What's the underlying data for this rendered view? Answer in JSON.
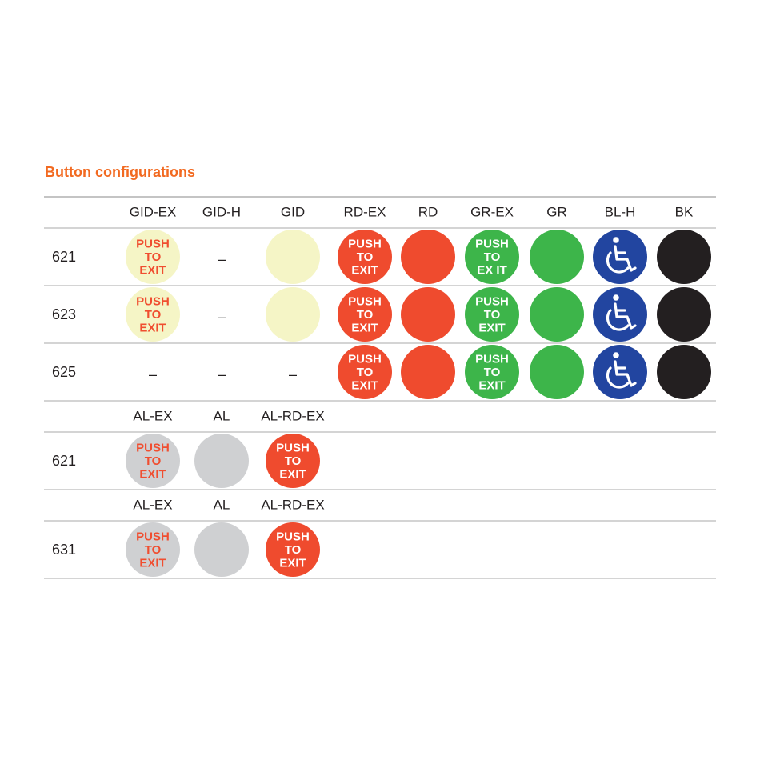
{
  "title": "Button configurations",
  "sections": [
    {
      "headers": [
        "GID-EX",
        "GID-H",
        "GID",
        "RD-EX",
        "RD",
        "GR-EX",
        "GR",
        "BL-H",
        "BK"
      ],
      "rows": [
        {
          "label": "621",
          "cells": [
            {
              "fill": "#f5f5c6",
              "ink": "#f04e30",
              "lines": [
                "PUSH",
                "TO",
                "EXIT"
              ]
            },
            {
              "dash": "–"
            },
            {
              "fill": "#f5f5c6"
            },
            {
              "fill": "#ef4b2e",
              "ink": "#ffffff",
              "lines": [
                "PUSH",
                "TO",
                "EXIT"
              ]
            },
            {
              "fill": "#ef4b2e"
            },
            {
              "fill": "#3db54a",
              "ink": "#ffffff",
              "lines": [
                "PUSH",
                "TO",
                "EX IT"
              ]
            },
            {
              "fill": "#3db54a"
            },
            {
              "fill": "#2245a0",
              "icon": "wheelchair"
            },
            {
              "fill": "#231f20"
            }
          ]
        },
        {
          "label": "623",
          "cells": [
            {
              "fill": "#f5f5c6",
              "ink": "#f04e30",
              "lines": [
                "PUSH",
                "TO",
                "EXIT"
              ]
            },
            {
              "dash": "–"
            },
            {
              "fill": "#f5f5c6"
            },
            {
              "fill": "#ef4b2e",
              "ink": "#ffffff",
              "lines": [
                "PUSH",
                "TO",
                "EXIT"
              ]
            },
            {
              "fill": "#ef4b2e"
            },
            {
              "fill": "#3db54a",
              "ink": "#ffffff",
              "lines": [
                "PUSH",
                "TO",
                "EXIT"
              ]
            },
            {
              "fill": "#3db54a"
            },
            {
              "fill": "#2245a0",
              "icon": "wheelchair"
            },
            {
              "fill": "#231f20"
            }
          ]
        },
        {
          "label": "625",
          "cells": [
            {
              "dash": "–"
            },
            {
              "dash": "–"
            },
            {
              "dash": "–"
            },
            {
              "fill": "#ef4b2e",
              "ink": "#ffffff",
              "lines": [
                "PUSH",
                "TO",
                "EXIT"
              ]
            },
            {
              "fill": "#ef4b2e"
            },
            {
              "fill": "#3db54a",
              "ink": "#ffffff",
              "lines": [
                "PUSH",
                "TO",
                "EXIT"
              ]
            },
            {
              "fill": "#3db54a"
            },
            {
              "fill": "#2245a0",
              "icon": "wheelchair"
            },
            {
              "fill": "#231f20"
            }
          ]
        }
      ]
    },
    {
      "headers": [
        "AL-EX",
        "AL",
        "AL-RD-EX"
      ],
      "rows": [
        {
          "label": "621",
          "cells": [
            {
              "fill": "#cfd0d2",
              "ink": "#f04e30",
              "lines": [
                "PUSH",
                "TO",
                "EXIT"
              ]
            },
            {
              "fill": "#cfd0d2"
            },
            {
              "fill": "#ef4b2e",
              "ink": "#ffffff",
              "lines": [
                "PUSH",
                "TO",
                "EXIT"
              ]
            }
          ]
        }
      ]
    },
    {
      "headers": [
        "AL-EX",
        "AL",
        "AL-RD-EX"
      ],
      "rows": [
        {
          "label": "631",
          "cells": [
            {
              "fill": "#cfd0d2",
              "ink": "#f04e30",
              "lines": [
                "PUSH",
                "TO",
                "EXIT"
              ]
            },
            {
              "fill": "#cfd0d2"
            },
            {
              "fill": "#ef4b2e",
              "ink": "#ffffff",
              "lines": [
                "PUSH",
                "TO",
                "EXIT"
              ]
            }
          ]
        }
      ]
    }
  ]
}
